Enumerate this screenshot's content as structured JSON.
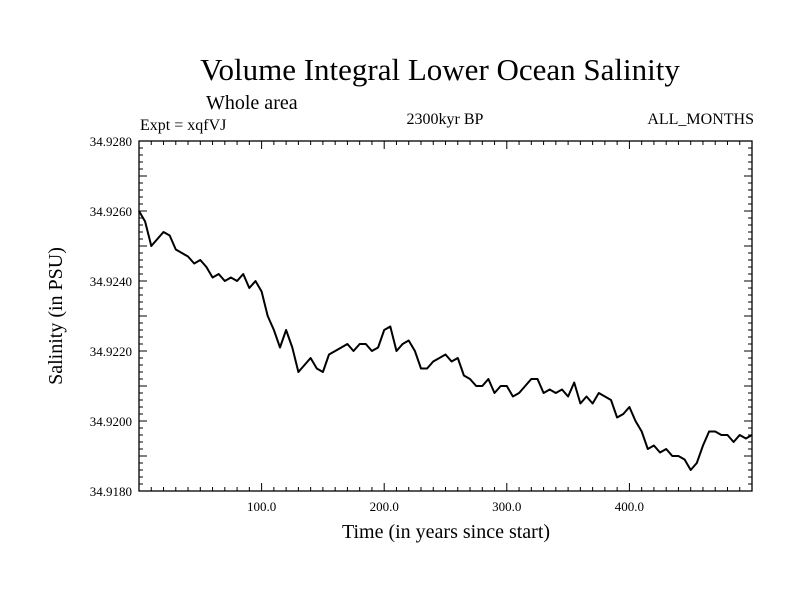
{
  "header": {
    "title": "Volume Integral Lower Ocean Salinity",
    "subtitle": "Whole area",
    "experiment": "Expt = xqfVJ",
    "period": "2300kyr BP",
    "months": "ALL_MONTHS"
  },
  "chart_data": {
    "type": "line",
    "title": "Volume Integral Lower Ocean Salinity",
    "xlabel": "Time (in years since start)",
    "ylabel": "Salinity (in PSU)",
    "xlim": [
      0,
      500
    ],
    "ylim": [
      34.918,
      34.928
    ],
    "x_ticks": [
      100,
      200,
      300,
      400
    ],
    "x_tick_labels": [
      "100.0",
      "200.0",
      "300.0",
      "400.0"
    ],
    "y_ticks": [
      34.918,
      34.92,
      34.922,
      34.924,
      34.926,
      34.928
    ],
    "y_tick_labels": [
      "34.9180",
      "34.9200",
      "34.9220",
      "34.9240",
      "34.9260",
      "34.9280"
    ],
    "grid": false,
    "series": [
      {
        "name": "salinity",
        "x": [
          0,
          5,
          10,
          15,
          20,
          25,
          30,
          35,
          40,
          45,
          50,
          55,
          60,
          65,
          70,
          75,
          80,
          85,
          90,
          95,
          100,
          105,
          110,
          115,
          120,
          125,
          130,
          135,
          140,
          145,
          150,
          155,
          160,
          165,
          170,
          175,
          180,
          185,
          190,
          195,
          200,
          205,
          210,
          215,
          220,
          225,
          230,
          235,
          240,
          245,
          250,
          255,
          260,
          265,
          270,
          275,
          280,
          285,
          290,
          295,
          300,
          305,
          310,
          315,
          320,
          325,
          330,
          335,
          340,
          345,
          350,
          355,
          360,
          365,
          370,
          375,
          380,
          385,
          390,
          395,
          400,
          405,
          410,
          415,
          420,
          425,
          430,
          435,
          440,
          445,
          450,
          455,
          460,
          465,
          470,
          475,
          480,
          485,
          490,
          495,
          500
        ],
        "y": [
          34.926,
          34.9257,
          34.925,
          34.9252,
          34.9254,
          34.9253,
          34.9249,
          34.9248,
          34.9247,
          34.9245,
          34.9246,
          34.9244,
          34.9241,
          34.9242,
          34.924,
          34.9241,
          34.924,
          34.9242,
          34.9238,
          34.924,
          34.9237,
          34.923,
          34.9226,
          34.9221,
          34.9226,
          34.9221,
          34.9214,
          34.9216,
          34.9218,
          34.9215,
          34.9214,
          34.9219,
          34.922,
          34.9221,
          34.9222,
          34.922,
          34.9222,
          34.9222,
          34.922,
          34.9221,
          34.9226,
          34.9227,
          34.922,
          34.9222,
          34.9223,
          34.922,
          34.9215,
          34.9215,
          34.9217,
          34.9218,
          34.9219,
          34.9217,
          34.9218,
          34.9213,
          34.9212,
          34.921,
          34.921,
          34.9212,
          34.9208,
          34.921,
          34.921,
          34.9207,
          34.9208,
          34.921,
          34.9212,
          34.9212,
          34.9208,
          34.9209,
          34.9208,
          34.9209,
          34.9207,
          34.9211,
          34.9205,
          34.9207,
          34.9205,
          34.9208,
          34.9207,
          34.9206,
          34.9201,
          34.9202,
          34.9204,
          34.92,
          34.9197,
          34.9192,
          34.9193,
          34.9191,
          34.9192,
          34.919,
          34.919,
          34.9189,
          34.9186,
          34.9188,
          34.9193,
          34.9197,
          34.9197,
          34.9196,
          34.9196,
          34.9194,
          34.9196,
          34.9195,
          34.9196
        ]
      }
    ]
  }
}
